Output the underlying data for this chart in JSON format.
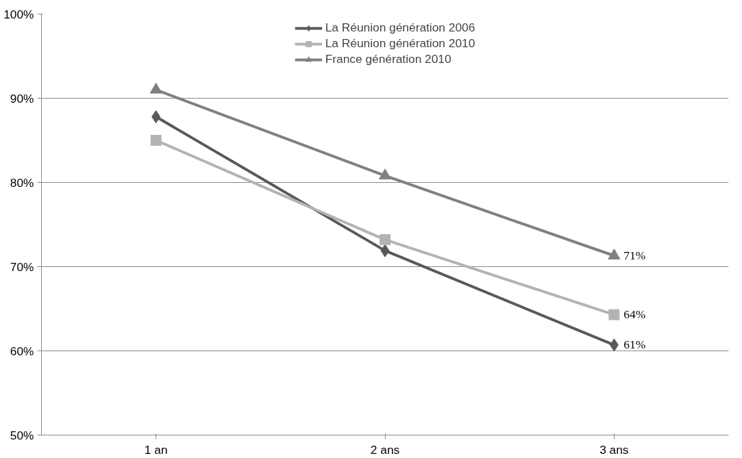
{
  "chart_data": {
    "type": "line",
    "categories": [
      "1 an",
      "2 ans",
      "3 ans"
    ],
    "series": [
      {
        "name": "La Réunion génération 2006",
        "color": "#595959",
        "marker": "diamond",
        "values": [
          87.8,
          71.9,
          60.7
        ],
        "value_labels": [
          null,
          null,
          "61%"
        ]
      },
      {
        "name": "La Réunion génération 2010",
        "color": "#b3b3b3",
        "marker": "square",
        "values": [
          85.0,
          73.2,
          64.3
        ],
        "value_labels": [
          null,
          null,
          "64%"
        ]
      },
      {
        "name": "France génération 2010",
        "color": "#808080",
        "marker": "triangle",
        "values": [
          91.0,
          80.8,
          71.3
        ],
        "value_labels": [
          null,
          null,
          "71%"
        ]
      }
    ],
    "ylim": [
      50,
      100
    ],
    "yticks": [
      {
        "value": 50,
        "label": "50%"
      },
      {
        "value": 60,
        "label": "60%"
      },
      {
        "value": 70,
        "label": "70%"
      },
      {
        "value": 80,
        "label": "80%"
      },
      {
        "value": 90,
        "label": "90%"
      },
      {
        "value": 100,
        "label": "100%"
      }
    ],
    "grid": "y",
    "legend": "top"
  }
}
